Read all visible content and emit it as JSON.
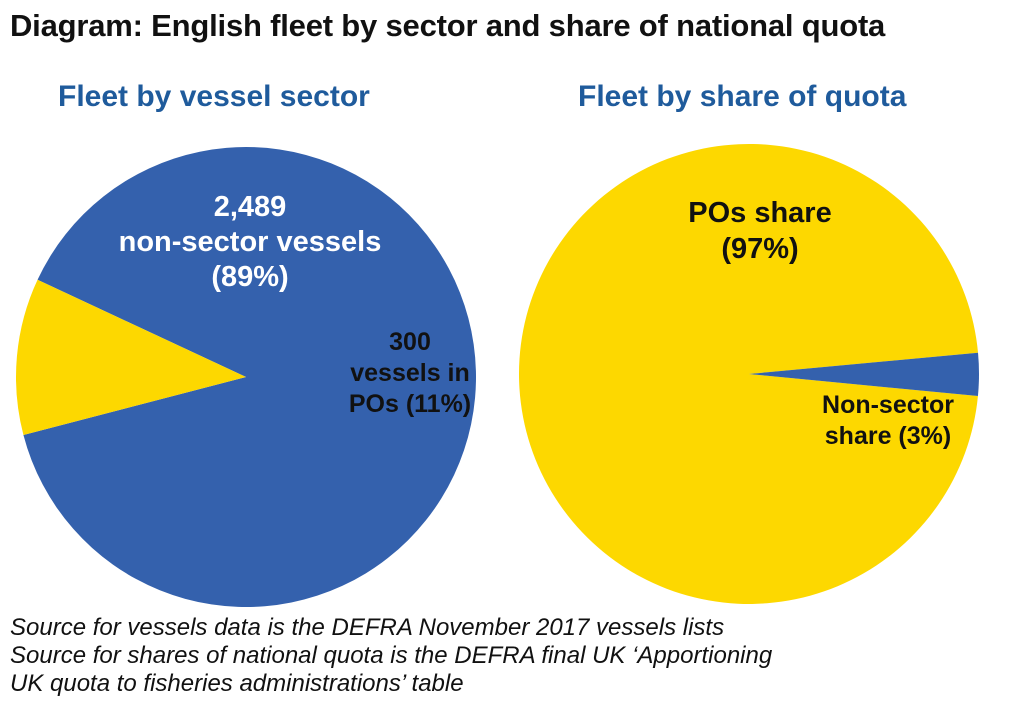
{
  "title": "Diagram: English fleet by sector and share of national quota",
  "colors": {
    "blue": "#3461ad",
    "yellow": "#fdd800",
    "title_blue": "#1f5b9c"
  },
  "chart_data": [
    {
      "type": "pie",
      "title": "Fleet by vessel sector",
      "slices": [
        {
          "name": "non-sector vessels",
          "value": 2489,
          "percent": 89,
          "color": "#3461ad",
          "label_lines": [
            "2,489",
            "non-sector vessels",
            "(89%)"
          ],
          "label_color": "#ffffff"
        },
        {
          "name": "vessels in POs",
          "value": 300,
          "percent": 11,
          "color": "#fdd800",
          "label_lines": [
            "300",
            "vessels in",
            "POs (11%)"
          ],
          "label_color": "#111111"
        }
      ]
    },
    {
      "type": "pie",
      "title": "Fleet by share of quota",
      "slices": [
        {
          "name": "POs share",
          "percent": 97,
          "color": "#fdd800",
          "label_lines": [
            "POs share",
            "(97%)"
          ],
          "label_color": "#111111"
        },
        {
          "name": "Non-sector share",
          "percent": 3,
          "color": "#3461ad",
          "label_lines": [
            "Non-sector",
            "share (3%)"
          ],
          "label_color": "#111111"
        }
      ]
    }
  ],
  "source_lines": [
    "Source for vessels data is the DEFRA November 2017 vessels lists",
    "Source for shares of national quota is the DEFRA final UK ‘Apportioning",
    "UK quota to fisheries administrations’ table"
  ]
}
